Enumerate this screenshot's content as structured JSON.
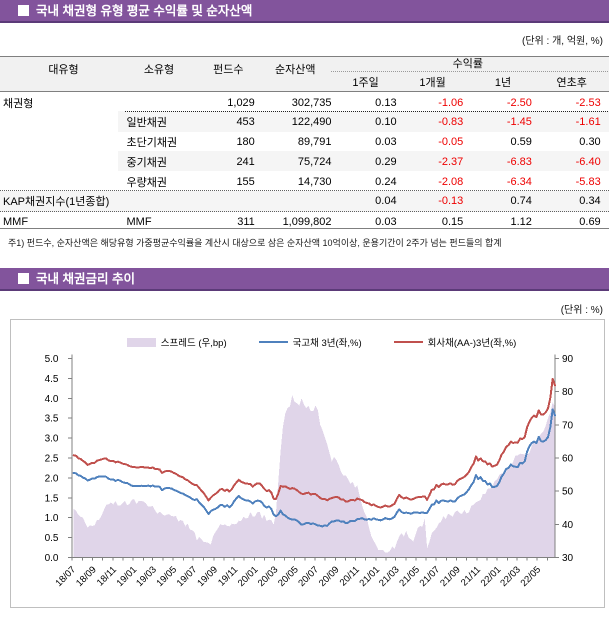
{
  "section1": {
    "bullet": "■",
    "title": "국내 채권형 유형 평균 수익률 및 순자산액",
    "unit_label": "(단위 : 개, 억원, %)"
  },
  "table": {
    "headers": {
      "col_main": "대유형",
      "col_sub": "소유형",
      "col_fund_count": "펀드수",
      "col_net_assets": "순자산액",
      "group_returns": "수익률",
      "sub_cols": [
        "1주일",
        "1개월",
        "1년",
        "연초후"
      ]
    },
    "rows": [
      {
        "cells": [
          "채권형",
          "",
          "1,029",
          "302,735",
          "0.13",
          "-1.06",
          "-2.50",
          "-2.53"
        ]
      },
      {
        "cells": [
          "",
          "일반채권",
          "453",
          "122,490",
          "0.10",
          "-0.83",
          "-1.45",
          "-1.61"
        ]
      },
      {
        "cells": [
          "",
          "초단기채권",
          "180",
          "89,791",
          "0.03",
          "-0.05",
          "0.59",
          "0.30"
        ]
      },
      {
        "cells": [
          "",
          "중기채권",
          "241",
          "75,724",
          "0.29",
          "-2.37",
          "-6.83",
          "-6.40"
        ]
      },
      {
        "cells": [
          "",
          "우량채권",
          "155",
          "14,730",
          "0.24",
          "-2.08",
          "-6.34",
          "-5.83"
        ]
      },
      {
        "cells": [
          "KAP채권지수(1년종합)",
          "",
          "",
          "",
          "0.04",
          "-0.13",
          "0.74",
          "0.34"
        ]
      },
      {
        "cells": [
          "MMF",
          "MMF",
          "311",
          "1,099,802",
          "0.03",
          "0.15",
          "1.12",
          "0.69"
        ]
      }
    ],
    "footnote": "주1) 펀드수, 순자산액은 해당유형 가중평균수익률을 계산시 대상으로 삼은 순자산액 10억이상, 운용기간이 2주가 넘는 펀드들의 합계"
  },
  "section2": {
    "bullet": "■",
    "title": "국내 채권금리 추이",
    "unit_label": "(단위 : %)"
  },
  "chart_data": {
    "type": "line+area",
    "title": "국내 채권금리 추이",
    "x_start_date": "2018-07-06",
    "x_end_date": "2022-06-24",
    "x_frequency": "weekly",
    "x_axis_start": "2018-07-01",
    "x_tick_labels": [
      "18/07",
      "18/09",
      "18/11",
      "19/01",
      "19/03",
      "19/05",
      "19/07",
      "19/09",
      "19/11",
      "20/01",
      "20/03",
      "20/05",
      "20/07",
      "20/09",
      "20/11",
      "21/01",
      "21/03",
      "21/05",
      "21/07",
      "21/09",
      "21/11",
      "22/01",
      "22/03",
      "22/05"
    ],
    "left_axis": {
      "min": 0.0,
      "max": 5.0,
      "step": 0.5,
      "labels": [
        "0.0",
        "0.5",
        "1.0",
        "1.5",
        "2.0",
        "2.5",
        "3.0",
        "3.5",
        "4.0",
        "4.5",
        "5.0"
      ]
    },
    "right_axis": {
      "min": 30,
      "max": 90,
      "step": 10,
      "labels": [
        "30",
        "40",
        "50",
        "60",
        "70",
        "80",
        "90"
      ]
    },
    "colors": {
      "spread_area": "#e0d5e9",
      "treasury_line": "#4f81bd",
      "corporate_line": "#c0504d"
    },
    "series": [
      {
        "name": "스프레드 (우,bp)",
        "type": "area",
        "axis": "right",
        "color": "#e0d5e9",
        "values": [
          44.7,
          44.1,
          42.9,
          42.3,
          42.0,
          40.4,
          39.0,
          39.7,
          39.5,
          39.7,
          41.3,
          41.4,
          42.7,
          44.3,
          45.9,
          46.0,
          46.6,
          46.0,
          47.0,
          45.7,
          45.7,
          46.4,
          47.1,
          45.8,
          46.1,
          47.4,
          47.6,
          46.2,
          47.0,
          47.1,
          46.9,
          46.4,
          45.4,
          45.4,
          45.5,
          44.2,
          43.2,
          43.8,
          43.2,
          42.6,
          42.9,
          43.1,
          42.5,
          42.4,
          42.5,
          40.9,
          41.3,
          41.0,
          39.4,
          40.3,
          38.4,
          38.2,
          37.6,
          35.1,
          36.2,
          35.5,
          34.6,
          34.6,
          34.4,
          33.9,
          36.5,
          37.7,
          38.7,
          40.1,
          39.7,
          40.0,
          39.5,
          39.4,
          40.2,
          40.0,
          40.1,
          41.1,
          41.0,
          42.3,
          41.8,
          41.9,
          43.7,
          42.4,
          42.4,
          43.7,
          43.7,
          41.7,
          42.9,
          41.0,
          41.4,
          41.3,
          39.9,
          43.5,
          52.8,
          62.1,
          69.4,
          73.4,
          75.1,
          75.5,
          78.9,
          77.0,
          76.5,
          75.8,
          78.0,
          76.2,
          75.0,
          75.7,
          74.1,
          74.1,
          75.8,
          74.5,
          70.1,
          68.4,
          66.3,
          64.2,
          61.6,
          59.0,
          60.3,
          59.4,
          57.9,
          55.8,
          54.7,
          54.8,
          53.6,
          52.2,
          52.8,
          51.1,
          51.7,
          48.6,
          45.8,
          43.7,
          42.2,
          39.0,
          36.5,
          35.0,
          33.9,
          32.3,
          32.3,
          32.3,
          31.5,
          31.5,
          32.0,
          33.3,
          32.6,
          34.7,
          36.3,
          37.4,
          36.3,
          38.0,
          36.1,
          35.5,
          34.8,
          36.8,
          39.0,
          39.5,
          39.3,
          41.7,
          32.8,
          34.7,
          37.3,
          38.1,
          38.9,
          40.3,
          40.8,
          42.5,
          41.6,
          43.2,
          42.8,
          42.3,
          43.7,
          44.2,
          43.4,
          43.1,
          44.3,
          43.3,
          43.6,
          45.6,
          45.9,
          46.7,
          47.0,
          47.4,
          49.2,
          49.1,
          50.7,
          50.8,
          51.2,
          53.0,
          53.5,
          54.9,
          55.4,
          55.0,
          55.8,
          57.3,
          57.5,
          58.9,
          60.8,
          60.8,
          61.3,
          61.2,
          61.0,
          61.0,
          61.6,
          63.6,
          65.2,
          65.0,
          66.4,
          67.3,
          68.0,
          69.7,
          72.1,
          73.7,
          76.8,
          75.5
        ]
      },
      {
        "name": "국고채 3년(좌,%)",
        "type": "line",
        "axis": "left",
        "color": "#4f81bd",
        "values": [
          2.122,
          2.115,
          2.065,
          2.053,
          2.007,
          1.986,
          1.936,
          1.956,
          1.982,
          1.979,
          2.019,
          2.037,
          2.037,
          2.041,
          2.027,
          1.978,
          1.959,
          1.964,
          1.922,
          1.951,
          1.931,
          1.894,
          1.877,
          1.872,
          1.836,
          1.804,
          1.796,
          1.802,
          1.796,
          1.803,
          1.801,
          1.792,
          1.807,
          1.788,
          1.81,
          1.779,
          1.789,
          1.774,
          1.69,
          1.73,
          1.75,
          1.741,
          1.738,
          1.702,
          1.679,
          1.654,
          1.62,
          1.605,
          1.569,
          1.538,
          1.512,
          1.469,
          1.445,
          1.465,
          1.383,
          1.32,
          1.268,
          1.179,
          1.091,
          1.166,
          1.197,
          1.223,
          1.26,
          1.314,
          1.318,
          1.273,
          1.313,
          1.262,
          1.313,
          1.414,
          1.486,
          1.543,
          1.492,
          1.458,
          1.436,
          1.433,
          1.407,
          1.353,
          1.409,
          1.428,
          1.423,
          1.382,
          1.295,
          1.256,
          1.282,
          1.22,
          1.077,
          1.037,
          1.081,
          1.177,
          1.083,
          1.055,
          1.003,
          0.968,
          0.955,
          0.958,
          0.929,
          0.884,
          0.822,
          0.837,
          0.867,
          0.872,
          0.842,
          0.856,
          0.833,
          0.803,
          0.797,
          0.781,
          0.807,
          0.794,
          0.856,
          0.904,
          0.908,
          0.931,
          0.927,
          0.897,
          0.909,
          0.861,
          0.873,
          0.918,
          0.917,
          0.922,
          0.965,
          0.971,
          0.988,
          0.959,
          0.948,
          0.969,
          0.947,
          0.985,
          0.957,
          0.947,
          0.934,
          0.956,
          0.99,
          0.97,
          0.96,
          0.984,
          1.025,
          1.13,
          1.21,
          1.141,
          1.12,
          1.126,
          1.121,
          1.098,
          1.124,
          1.131,
          1.125,
          1.121,
          1.135,
          1.115,
          1.122,
          1.219,
          1.328,
          1.332,
          1.435,
          1.369,
          1.425,
          1.43,
          1.418,
          1.404,
          1.437,
          1.404,
          1.406,
          1.485,
          1.535,
          1.56,
          1.585,
          1.645,
          1.715,
          1.817,
          1.896,
          2.072,
          1.967,
          2.017,
          1.926,
          1.919,
          1.835,
          1.86,
          1.771,
          1.775,
          1.794,
          1.884,
          2.029,
          2.108,
          2.22,
          2.25,
          2.336,
          2.291,
          2.28,
          2.274,
          2.38,
          2.363,
          2.42,
          2.661,
          2.797,
          2.876,
          2.913,
          2.876,
          3.03,
          2.923,
          2.913,
          2.951,
          3.024,
          3.279,
          3.723,
          3.57
        ]
      },
      {
        "name": "회사채(AA-)3년(좌,%)",
        "type": "line",
        "axis": "left",
        "color": "#c0504d",
        "values": [
          2.569,
          2.556,
          2.494,
          2.476,
          2.427,
          2.39,
          2.326,
          2.353,
          2.377,
          2.376,
          2.431,
          2.45,
          2.464,
          2.484,
          2.486,
          2.437,
          2.425,
          2.424,
          2.392,
          2.408,
          2.388,
          2.358,
          2.348,
          2.33,
          2.297,
          2.279,
          2.272,
          2.264,
          2.265,
          2.274,
          2.27,
          2.256,
          2.26,
          2.243,
          2.265,
          2.222,
          2.221,
          2.211,
          2.123,
          2.156,
          2.179,
          2.172,
          2.162,
          2.126,
          2.104,
          2.062,
          2.033,
          2.016,
          1.963,
          1.941,
          1.896,
          1.851,
          1.821,
          1.816,
          1.745,
          1.675,
          1.614,
          1.525,
          1.435,
          1.504,
          1.562,
          1.599,
          1.648,
          1.714,
          1.716,
          1.673,
          1.707,
          1.656,
          1.715,
          1.814,
          1.887,
          1.954,
          1.902,
          1.881,
          1.854,
          1.853,
          1.844,
          1.777,
          1.832,
          1.865,
          1.86,
          1.799,
          1.724,
          1.666,
          1.695,
          1.633,
          1.476,
          1.472,
          1.61,
          1.798,
          1.776,
          1.789,
          1.754,
          1.722,
          1.744,
          1.728,
          1.694,
          1.642,
          1.602,
          1.599,
          1.617,
          1.629,
          1.583,
          1.597,
          1.591,
          1.548,
          1.497,
          1.465,
          1.469,
          1.437,
          1.472,
          1.494,
          1.511,
          1.525,
          1.507,
          1.455,
          1.456,
          1.409,
          1.409,
          1.44,
          1.444,
          1.433,
          1.482,
          1.457,
          1.446,
          1.396,
          1.37,
          1.359,
          1.312,
          1.335,
          1.296,
          1.269,
          1.257,
          1.278,
          1.305,
          1.285,
          1.28,
          1.316,
          1.351,
          1.477,
          1.573,
          1.515,
          1.483,
          1.506,
          1.481,
          1.453,
          1.471,
          1.5,
          1.515,
          1.516,
          1.528,
          1.531,
          1.45,
          1.566,
          1.701,
          1.713,
          1.824,
          1.773,
          1.833,
          1.855,
          1.834,
          1.836,
          1.865,
          1.827,
          1.843,
          1.926,
          1.969,
          1.991,
          2.028,
          2.078,
          2.151,
          2.273,
          2.356,
          2.539,
          2.437,
          2.491,
          2.418,
          2.41,
          2.341,
          2.367,
          2.283,
          2.305,
          2.329,
          2.433,
          2.583,
          2.658,
          2.778,
          2.823,
          2.911,
          2.88,
          2.888,
          2.882,
          2.993,
          2.975,
          3.03,
          3.271,
          3.413,
          3.512,
          3.565,
          3.526,
          3.694,
          3.596,
          3.593,
          3.648,
          3.745,
          4.016,
          4.491,
          4.326
        ]
      }
    ]
  }
}
